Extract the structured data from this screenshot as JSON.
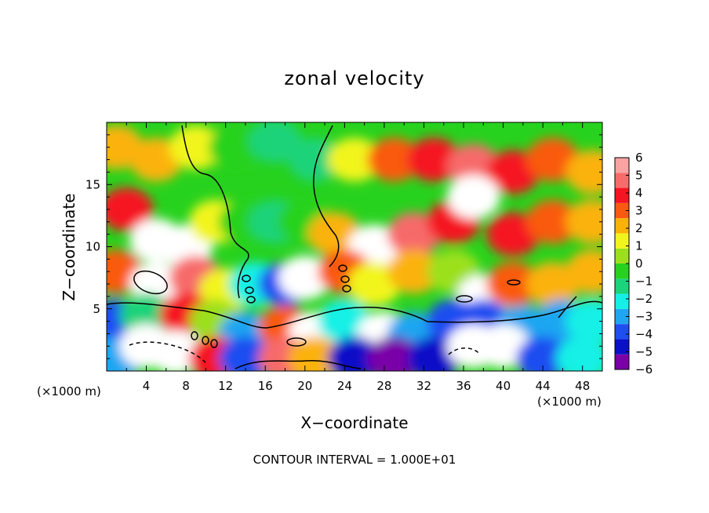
{
  "chart_data": {
    "type": "heatmap",
    "title": "zonal velocity",
    "xlabel": "X−coordinate",
    "ylabel": "Z−coordinate",
    "x_unit_label": "(×1000 m)",
    "xlim": [
      0,
      50
    ],
    "ylim": [
      0,
      20
    ],
    "xticks": [
      4,
      8,
      12,
      16,
      20,
      24,
      28,
      32,
      36,
      40,
      44,
      48
    ],
    "yticks": [
      5,
      10,
      15
    ],
    "colorbar": {
      "ticks": [
        6,
        5,
        4,
        3,
        2,
        1,
        0,
        -1,
        -2,
        -3,
        -4,
        -5,
        -6
      ],
      "tick_labels": [
        "6",
        "5",
        "4",
        "3",
        "2",
        "1",
        "0",
        "−1",
        "−2",
        "−3",
        "−4",
        "−5",
        "−6"
      ],
      "range": [
        -6,
        6
      ],
      "colors": [
        "#7a00a8",
        "#0a0fc8",
        "#1f4ef0",
        "#1fa6f2",
        "#14f0e6",
        "#1ad37a",
        "#27d21e",
        "#9ce01c",
        "#f2f51c",
        "#fbb208",
        "#fa5a10",
        "#f51422",
        "#f76b6b",
        "#f9a3a3"
      ],
      "over_color": "#ffffff"
    },
    "footer": "CONTOUR INTERVAL = 1.000E+01",
    "field_samples": [
      {
        "x": 1,
        "z": 18,
        "v": 2.5
      },
      {
        "x": 5,
        "z": 17,
        "v": 2.0
      },
      {
        "x": 9,
        "z": 18,
        "v": 1.0
      },
      {
        "x": 13,
        "z": 18,
        "v": -0.8
      },
      {
        "x": 17,
        "z": 18.5,
        "v": -1.5
      },
      {
        "x": 21,
        "z": 17,
        "v": -1.0
      },
      {
        "x": 25,
        "z": 17,
        "v": 1.0
      },
      {
        "x": 29,
        "z": 17,
        "v": 3.0
      },
      {
        "x": 33,
        "z": 17,
        "v": 4.0
      },
      {
        "x": 37,
        "z": 16.5,
        "v": 5.0
      },
      {
        "x": 41,
        "z": 16,
        "v": 4.0
      },
      {
        "x": 45,
        "z": 17,
        "v": 2.8
      },
      {
        "x": 49,
        "z": 16,
        "v": 2.0
      },
      {
        "x": 2,
        "z": 13,
        "v": 3.5
      },
      {
        "x": 5,
        "z": 10.5,
        "v": 7.0
      },
      {
        "x": 8,
        "z": 10,
        "v": 6.5
      },
      {
        "x": 11,
        "z": 12,
        "v": 1.2
      },
      {
        "x": 14,
        "z": 12,
        "v": -0.5
      },
      {
        "x": 17,
        "z": 12,
        "v": -1.2
      },
      {
        "x": 20,
        "z": 12,
        "v": -0.5
      },
      {
        "x": 23,
        "z": 11,
        "v": 2.0
      },
      {
        "x": 27,
        "z": 10,
        "v": 7.0
      },
      {
        "x": 31,
        "z": 11,
        "v": 4.5
      },
      {
        "x": 35,
        "z": 12,
        "v": 4.0
      },
      {
        "x": 37,
        "z": 14,
        "v": 7.0
      },
      {
        "x": 41,
        "z": 11,
        "v": 4.0
      },
      {
        "x": 45,
        "z": 12,
        "v": 3.0
      },
      {
        "x": 49,
        "z": 12,
        "v": 2.0
      },
      {
        "x": 1,
        "z": 8,
        "v": 3.0
      },
      {
        "x": 5,
        "z": 7,
        "v": 7.0
      },
      {
        "x": 9,
        "z": 7.5,
        "v": 5.0
      },
      {
        "x": 12,
        "z": 6.5,
        "v": 1.5
      },
      {
        "x": 15,
        "z": 7,
        "v": -2.5
      },
      {
        "x": 18,
        "z": 7,
        "v": -4.0
      },
      {
        "x": 20,
        "z": 7.5,
        "v": 7.0
      },
      {
        "x": 24,
        "z": 8,
        "v": 3.0
      },
      {
        "x": 27,
        "z": 7,
        "v": 1.0
      },
      {
        "x": 31,
        "z": 8,
        "v": 2.0
      },
      {
        "x": 35,
        "z": 8,
        "v": 0.5
      },
      {
        "x": 38,
        "z": 6,
        "v": 7.0
      },
      {
        "x": 41,
        "z": 7,
        "v": 3.0
      },
      {
        "x": 45,
        "z": 7,
        "v": 2.0
      },
      {
        "x": 49,
        "z": 8,
        "v": 2.5
      },
      {
        "x": 1,
        "z": 4,
        "v": -3.5
      },
      {
        "x": 4,
        "z": 4.5,
        "v": -1.5
      },
      {
        "x": 8,
        "z": 4.5,
        "v": 4.0
      },
      {
        "x": 11,
        "z": 4,
        "v": 0.0
      },
      {
        "x": 14,
        "z": 3,
        "v": -3.0
      },
      {
        "x": 18,
        "z": 3.5,
        "v": 3.0
      },
      {
        "x": 21,
        "z": 3,
        "v": 7.0
      },
      {
        "x": 24,
        "z": 4,
        "v": -2.0
      },
      {
        "x": 28,
        "z": 3,
        "v": 6.5
      },
      {
        "x": 31,
        "z": 3,
        "v": -3.0
      },
      {
        "x": 35,
        "z": 4,
        "v": -3.5
      },
      {
        "x": 38,
        "z": 4,
        "v": -4.0
      },
      {
        "x": 42,
        "z": 3.5,
        "v": -3.0
      },
      {
        "x": 46,
        "z": 4,
        "v": -3.0
      },
      {
        "x": 49,
        "z": 4,
        "v": -2.0
      },
      {
        "x": 1,
        "z": 1,
        "v": -3.0
      },
      {
        "x": 4,
        "z": 2,
        "v": 7.0
      },
      {
        "x": 7,
        "z": 1.5,
        "v": 7.0
      },
      {
        "x": 11,
        "z": 1,
        "v": 3.5
      },
      {
        "x": 14,
        "z": 1,
        "v": -3.5
      },
      {
        "x": 18,
        "z": 1,
        "v": 4.5
      },
      {
        "x": 21,
        "z": 1,
        "v": 2.0
      },
      {
        "x": 25,
        "z": 1,
        "v": -4.5
      },
      {
        "x": 29,
        "z": 1,
        "v": -5.5
      },
      {
        "x": 33,
        "z": 1,
        "v": -5.0
      },
      {
        "x": 37,
        "z": 2,
        "v": 7.0
      },
      {
        "x": 40,
        "z": 2,
        "v": 7.0
      },
      {
        "x": 44,
        "z": 1,
        "v": -4.0
      },
      {
        "x": 48,
        "z": 1,
        "v": -2.5
      }
    ]
  }
}
